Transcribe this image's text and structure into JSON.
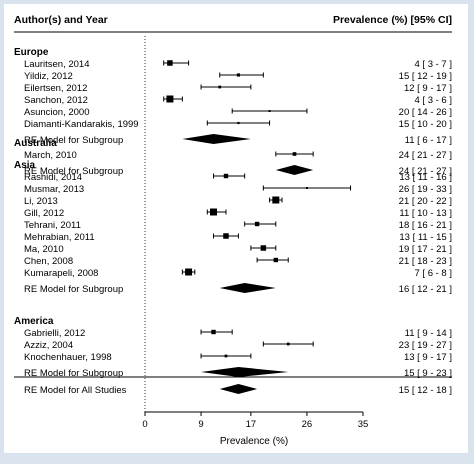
{
  "header": {
    "left": "Author(s) and Year",
    "right": "Prevalence (%) [95% CI]"
  },
  "chart_data": {
    "type": "forest",
    "xlabel": "Prevalence (%)",
    "xlim": [
      0,
      35
    ],
    "xticks": [
      0,
      9,
      17,
      26,
      35
    ],
    "reference_line": 0,
    "groups": [
      {
        "name": "Europe",
        "studies": [
          {
            "label": "Lauritsen, 2014",
            "est": 4,
            "lo": 3,
            "hi": 7,
            "text": "4 [ 3 - 7 ]"
          },
          {
            "label": "Yildiz, 2012",
            "est": 15,
            "lo": 12,
            "hi": 19,
            "text": "15 [ 12 - 19 ]"
          },
          {
            "label": "Eilertsen, 2012",
            "est": 12,
            "lo": 9,
            "hi": 17,
            "text": "12 [ 9 - 17 ]"
          },
          {
            "label": "Sanchon, 2012",
            "est": 4,
            "lo": 3,
            "hi": 6,
            "text": "4 [ 3 - 6 ]"
          },
          {
            "label": "Asuncion, 2000",
            "est": 20,
            "lo": 14,
            "hi": 26,
            "text": "20 [ 14 - 26 ]"
          },
          {
            "label": "Diamanti-Kandarakis, 1999",
            "est": 15,
            "lo": 10,
            "hi": 20,
            "text": "15 [ 10 - 20 ]"
          }
        ],
        "summary": {
          "label": "RE Model for Subgroup",
          "est": 11,
          "lo": 6,
          "hi": 17,
          "text": "11 [ 6 - 17 ]"
        }
      },
      {
        "name": "Australia",
        "studies": [
          {
            "label": "March, 2010",
            "est": 24,
            "lo": 21,
            "hi": 27,
            "text": "24 [ 21 - 27 ]"
          }
        ],
        "summary": {
          "label": "RE Model for Subgroup",
          "est": 24,
          "lo": 21,
          "hi": 27,
          "text": "24 [ 21 - 27 ]"
        }
      },
      {
        "name": "Asia",
        "studies": [
          {
            "label": "Rashidi, 2014",
            "est": 13,
            "lo": 11,
            "hi": 16,
            "text": "13 [ 11 - 16 ]"
          },
          {
            "label": "Musmar, 2013",
            "est": 26,
            "lo": 19,
            "hi": 33,
            "text": "26 [ 19 - 33 ]"
          },
          {
            "label": "Li, 2013",
            "est": 21,
            "lo": 20,
            "hi": 22,
            "text": "21 [ 20 - 22 ]"
          },
          {
            "label": "Gill, 2012",
            "est": 11,
            "lo": 10,
            "hi": 13,
            "text": "11 [ 10 - 13 ]"
          },
          {
            "label": "Tehrani, 2011",
            "est": 18,
            "lo": 16,
            "hi": 21,
            "text": "18 [ 16 - 21 ]"
          },
          {
            "label": "Mehrabian, 2011",
            "est": 13,
            "lo": 11,
            "hi": 15,
            "text": "13 [ 11 - 15 ]"
          },
          {
            "label": "Ma, 2010",
            "est": 19,
            "lo": 17,
            "hi": 21,
            "text": "19 [ 17 - 21 ]"
          },
          {
            "label": "Chen, 2008",
            "est": 21,
            "lo": 18,
            "hi": 23,
            "text": "21 [ 18 - 23 ]"
          },
          {
            "label": "Kumarapeli, 2008",
            "est": 7,
            "lo": 6,
            "hi": 8,
            "text": "7 [ 6 - 8 ]"
          }
        ],
        "summary": {
          "label": "RE Model for Subgroup",
          "est": 16,
          "lo": 12,
          "hi": 21,
          "text": "16 [ 12 - 21 ]"
        }
      },
      {
        "name": "America",
        "studies": [
          {
            "label": "Gabrielli, 2012",
            "est": 11,
            "lo": 9,
            "hi": 14,
            "text": "11 [ 9 - 14 ]"
          },
          {
            "label": "Azziz, 2004",
            "est": 23,
            "lo": 19,
            "hi": 27,
            "text": "23 [ 19 - 27 ]"
          },
          {
            "label": "Knochenhauer, 1998",
            "est": 13,
            "lo": 9,
            "hi": 17,
            "text": "13 [ 9 - 17 ]"
          }
        ],
        "summary": {
          "label": "RE Model for Subgroup",
          "est": 15,
          "lo": 9,
          "hi": 23,
          "text": "15 [ 9 - 23 ]"
        }
      }
    ],
    "overall": {
      "label": "RE Model for All Studies",
      "est": 15,
      "lo": 12,
      "hi": 18,
      "text": "15 [ 12 - 18 ]"
    }
  }
}
